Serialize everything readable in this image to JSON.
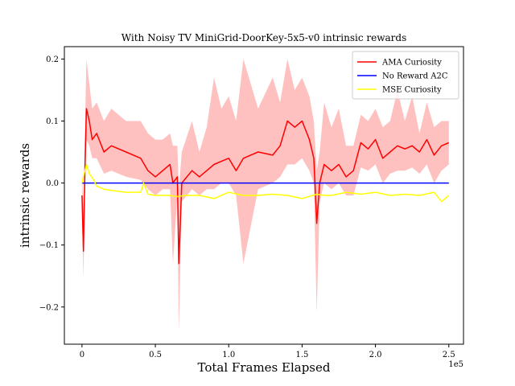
{
  "chart_data": {
    "type": "line",
    "title": "With Noisy TV MiniGrid-DoorKey-5x5-v0 intrinsic rewards",
    "xlabel": "Total Frames Elapsed",
    "ylabel": "intrinsic rewards",
    "x_offset_label": "1e5",
    "xlim": [
      -0.12,
      2.6
    ],
    "ylim": [
      -0.26,
      0.22
    ],
    "x_ticks": [
      0.0,
      0.5,
      1.0,
      1.5,
      2.0,
      2.5
    ],
    "x_tick_labels": [
      "0",
      "0.5",
      "1.0",
      "1.5",
      "2.0",
      "2.5"
    ],
    "y_ticks": [
      -0.2,
      -0.1,
      0.0,
      0.1,
      0.2
    ],
    "y_tick_labels": [
      "−0.2",
      "−0.1",
      "0.0",
      "0.1",
      "0.2"
    ],
    "grid": false,
    "legend_position": "top-right",
    "series": [
      {
        "name": "AMA Curiosity",
        "color": "#ff0000",
        "band_color": "#ffc0c0",
        "x": [
          0.0,
          0.01,
          0.02,
          0.03,
          0.05,
          0.07,
          0.1,
          0.15,
          0.2,
          0.3,
          0.4,
          0.45,
          0.5,
          0.55,
          0.6,
          0.62,
          0.65,
          0.66,
          0.68,
          0.75,
          0.8,
          0.85,
          0.9,
          0.95,
          1.0,
          1.05,
          1.1,
          1.2,
          1.3,
          1.35,
          1.4,
          1.45,
          1.5,
          1.55,
          1.58,
          1.6,
          1.62,
          1.65,
          1.7,
          1.75,
          1.8,
          1.85,
          1.9,
          1.95,
          2.0,
          2.05,
          2.1,
          2.15,
          2.2,
          2.25,
          2.3,
          2.35,
          2.4,
          2.45,
          2.5
        ],
        "y": [
          -0.02,
          -0.11,
          0.02,
          0.12,
          0.1,
          0.07,
          0.08,
          0.05,
          0.06,
          0.05,
          0.04,
          0.02,
          0.01,
          0.02,
          0.03,
          0.0,
          0.01,
          -0.13,
          0.0,
          0.02,
          0.01,
          0.02,
          0.03,
          0.035,
          0.04,
          0.02,
          0.04,
          0.05,
          0.045,
          0.06,
          0.1,
          0.09,
          0.1,
          0.07,
          0.04,
          -0.065,
          0.0,
          0.03,
          0.02,
          0.03,
          0.01,
          0.02,
          0.065,
          0.055,
          0.07,
          0.04,
          0.05,
          0.06,
          0.055,
          0.06,
          0.05,
          0.07,
          0.045,
          0.06,
          0.065
        ],
        "band_low": [
          -0.05,
          -0.155,
          -0.02,
          0.07,
          0.06,
          0.04,
          0.04,
          0.015,
          0.02,
          0.01,
          0.005,
          -0.01,
          -0.02,
          -0.01,
          -0.01,
          -0.13,
          -0.02,
          -0.24,
          -0.03,
          -0.01,
          -0.02,
          -0.01,
          -0.01,
          0.0,
          0.0,
          -0.02,
          -0.13,
          -0.01,
          0.0,
          0.01,
          0.03,
          0.03,
          0.04,
          0.02,
          0.0,
          -0.21,
          -0.03,
          0.0,
          -0.01,
          0.0,
          -0.02,
          -0.02,
          0.025,
          0.02,
          0.03,
          0.0,
          0.015,
          0.02,
          0.02,
          0.025,
          0.015,
          0.03,
          0.0,
          0.02,
          0.03
        ],
        "band_high": [
          0.02,
          -0.05,
          0.08,
          0.2,
          0.16,
          0.12,
          0.13,
          0.1,
          0.12,
          0.1,
          0.1,
          0.08,
          0.07,
          0.07,
          0.08,
          0.06,
          0.06,
          -0.01,
          0.05,
          0.1,
          0.05,
          0.09,
          0.17,
          0.12,
          0.14,
          0.1,
          0.2,
          0.12,
          0.17,
          0.13,
          0.2,
          0.15,
          0.17,
          0.14,
          0.1,
          0.02,
          0.05,
          0.13,
          0.09,
          0.12,
          0.06,
          0.06,
          0.11,
          0.1,
          0.12,
          0.09,
          0.1,
          0.15,
          0.1,
          0.14,
          0.08,
          0.13,
          0.09,
          0.1,
          0.1
        ]
      },
      {
        "name": "No Reward A2C",
        "color": "#0000ff",
        "x": [
          0.0,
          2.5
        ],
        "y": [
          0.0,
          0.0
        ]
      },
      {
        "name": "MSE Curiosity",
        "color": "#ffff00",
        "x": [
          0.0,
          0.03,
          0.05,
          0.08,
          0.1,
          0.15,
          0.2,
          0.3,
          0.4,
          0.42,
          0.45,
          0.5,
          0.55,
          0.6,
          0.65,
          0.7,
          0.8,
          0.9,
          1.0,
          1.1,
          1.2,
          1.3,
          1.4,
          1.5,
          1.6,
          1.65,
          1.7,
          1.8,
          1.9,
          2.0,
          2.1,
          2.2,
          2.3,
          2.4,
          2.45,
          2.5
        ],
        "y": [
          0.0,
          0.03,
          0.015,
          0.005,
          -0.005,
          -0.01,
          -0.012,
          -0.015,
          -0.015,
          0.0,
          -0.018,
          -0.02,
          -0.02,
          -0.02,
          -0.022,
          -0.02,
          -0.02,
          -0.025,
          -0.015,
          -0.02,
          -0.02,
          -0.018,
          -0.02,
          -0.025,
          -0.018,
          -0.02,
          -0.02,
          -0.015,
          -0.018,
          -0.015,
          -0.02,
          -0.018,
          -0.02,
          -0.015,
          -0.03,
          -0.02
        ]
      }
    ]
  }
}
